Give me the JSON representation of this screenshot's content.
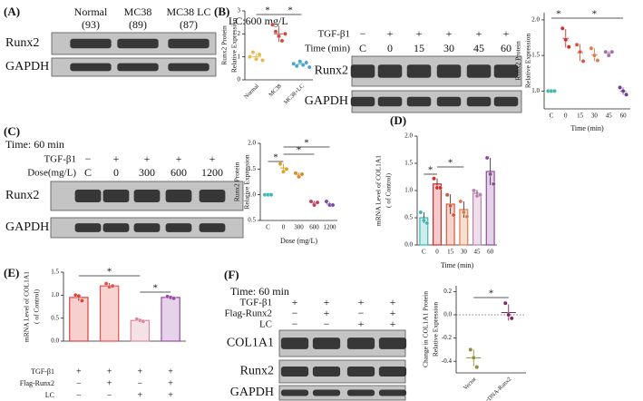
{
  "panels": [
    "(A)",
    "(B)",
    "(C)",
    "(D)",
    "(E)",
    "(F)"
  ],
  "blots": [
    {
      "lanes": [
        [
          "Normal",
          "(93)"
        ],
        [
          "MC38",
          "(89)"
        ],
        [
          "MC38 LC",
          "(87)"
        ]
      ],
      "rows": [
        "Runx2",
        "GAPDH"
      ]
    },
    {
      "notes": [
        "LC:600 mg/L"
      ],
      "conditions": [
        {
          "name": "TGF-β1",
          "marks": [
            "−",
            "+",
            "+",
            "+",
            "+",
            "+"
          ]
        },
        {
          "name": "Time (min)",
          "marks": [
            "C",
            "0",
            "15",
            "30",
            "45",
            "60"
          ]
        }
      ],
      "rows": [
        "Runx2",
        "GAPDH"
      ]
    },
    {
      "notes": [
        "Time: 60 min"
      ],
      "conditions": [
        {
          "name": "TGF-β1",
          "marks": [
            "−",
            "+",
            "+",
            "+",
            "+"
          ]
        },
        {
          "name": "Dose(mg/L)",
          "marks": [
            "C",
            "0",
            "300",
            "600",
            "1200"
          ]
        }
      ],
      "rows": [
        "Runx2",
        "GAPDH"
      ]
    },
    {
      "notes": [
        "Time: 60 min"
      ],
      "conditions": [
        {
          "name": "TGF-β1",
          "marks": [
            "+",
            "+",
            "+",
            "+"
          ]
        },
        {
          "name": "Flag-Runx2",
          "marks": [
            "−",
            "+",
            "−",
            "+"
          ]
        },
        {
          "name": "LC",
          "marks": [
            "−",
            "−",
            "+",
            "+"
          ]
        }
      ],
      "rows": [
        "COL1A1",
        "Runx2",
        "GAPDH"
      ]
    }
  ],
  "chart_data": [
    {
      "type": "dotplot",
      "ylabel": [
        "Runx2 Protein",
        "Relative Expression"
      ],
      "categories": [
        "Normal",
        "MC38",
        "MC38+LC"
      ],
      "colors": [
        "#e8b84a",
        "#d4473e",
        "#4aa3c8"
      ],
      "points": [
        [
          1.0,
          1.2,
          0.9,
          1.1,
          0.85
        ],
        [
          2.4,
          2.1,
          1.9,
          1.7,
          2.0
        ],
        [
          0.7,
          0.6,
          0.8,
          0.65,
          0.75,
          0.55
        ]
      ],
      "means": [
        1.0,
        2.0,
        0.68
      ],
      "errors": [
        0.15,
        0.35,
        0.1
      ],
      "ylim": [
        0,
        3
      ],
      "yticks": [
        0,
        1,
        2,
        3
      ],
      "annotations": [
        "*",
        "*"
      ]
    },
    {
      "type": "dotplot",
      "ylabel": [
        "Runx2 Protein",
        "Relative Expression"
      ],
      "xlabel": "Time (min)",
      "categories": [
        "C",
        "0",
        "15",
        "30",
        "45",
        "60"
      ],
      "colors": [
        "#3bb6b0",
        "#d42a2a",
        "#d8553a",
        "#e07a4a",
        "#a070a8",
        "#6a3c9c"
      ],
      "points": [
        [
          1.0,
          1.0,
          1.0
        ],
        [
          1.88,
          1.72,
          1.62
        ],
        [
          1.65,
          1.55,
          1.42
        ],
        [
          1.6,
          1.5,
          1.43
        ],
        [
          1.55,
          1.5,
          1.55
        ],
        [
          1.05,
          1.0,
          0.95
        ]
      ],
      "means": [
        1.0,
        1.74,
        1.54,
        1.51,
        1.53,
        1.0
      ],
      "errors": [
        0,
        0.13,
        0.12,
        0.09,
        0.03,
        0.05
      ],
      "ylim": [
        0.75,
        2.1
      ],
      "yticks": [
        {
          "value": 1,
          "label": "1.0"
        },
        {
          "value": 1.5,
          "label": "1.5"
        },
        {
          "value": 2,
          "label": "2.0"
        }
      ],
      "annotations": [
        "*",
        "*"
      ]
    },
    {
      "type": "dotplot",
      "ylabel": [
        "Runx2 Protein",
        "Relative Expression"
      ],
      "xlabel": "Dose (mg/L)",
      "categories": [
        "C",
        "0",
        "300",
        "600",
        "1200"
      ],
      "colors": [
        "#3bb6b0",
        "#e0a020",
        "#d88a30",
        "#c0405a",
        "#7a4aa0"
      ],
      "points": [
        [
          1.0,
          1.0,
          1.0
        ],
        [
          1.6,
          1.45,
          1.5
        ],
        [
          1.42,
          1.35,
          1.4
        ],
        [
          0.87,
          0.8,
          0.85
        ],
        [
          0.87,
          0.8,
          0.8
        ]
      ],
      "means": [
        1.0,
        1.52,
        1.39,
        0.84,
        0.82
      ],
      "errors": [
        0,
        0.08,
        0.04,
        0.04,
        0.04
      ],
      "ylim": [
        0.5,
        2.0
      ],
      "yticks": [
        {
          "value": 0.5,
          "label": "0.5"
        },
        {
          "value": 1,
          "label": "1.0"
        },
        {
          "value": 1.5,
          "label": "1.5"
        },
        {
          "value": 2,
          "label": "2.0"
        }
      ],
      "annotations": [
        "*",
        "*",
        "*"
      ]
    },
    {
      "type": "bar",
      "ylabel": [
        "mRNA Level of COL1A1",
        "( of Control)"
      ],
      "xlabel": "Time (min)",
      "categories": [
        "C",
        "0",
        "15",
        "30",
        "45",
        "60"
      ],
      "colors": [
        "#3bb6b0",
        "#d42a2a",
        "#d8553a",
        "#e07a4a",
        "#c080b0",
        "#8e4a9c"
      ],
      "values": [
        0.5,
        1.12,
        0.75,
        0.65,
        0.95,
        1.35
      ],
      "errors": [
        0.1,
        0.1,
        0.18,
        0.15,
        0.06,
        0.25
      ],
      "points": [
        [
          0.6,
          0.45,
          0.4
        ],
        [
          1.22,
          1.05,
          1.05
        ],
        [
          0.92,
          0.72,
          0.55
        ],
        [
          0.8,
          0.6,
          0.52
        ],
        [
          1.0,
          0.9,
          0.92
        ],
        [
          1.6,
          1.3,
          1.12
        ]
      ],
      "ylim": [
        0,
        2
      ],
      "yticks": [
        {
          "value": 0,
          "label": "0.0"
        },
        {
          "value": 0.5,
          "label": "0.5"
        },
        {
          "value": 1,
          "label": "1.0"
        },
        {
          "value": 1.5,
          "label": "1.5"
        },
        {
          "value": 2,
          "label": "2.0"
        }
      ],
      "annotations": [
        "*",
        "*"
      ]
    },
    {
      "type": "bar",
      "ylabel": [
        "mRNA Level of COL1A1",
        "( of Control)"
      ],
      "colors": [
        "#e0403a",
        "#e8504a",
        "#d88aa0",
        "#9a4aa8"
      ],
      "values": [
        0.95,
        1.2,
        0.45,
        0.95
      ],
      "errors": [
        0.07,
        0.06,
        0.04,
        0.04
      ],
      "points": [
        [
          1.0,
          0.98,
          0.88
        ],
        [
          1.25,
          1.18,
          1.2
        ],
        [
          0.48,
          0.45,
          0.43
        ],
        [
          0.97,
          0.95,
          0.93
        ]
      ],
      "conditions": [
        {
          "name": "TGF-β1",
          "marks": [
            "+",
            "+",
            "+",
            "+"
          ]
        },
        {
          "name": "Flag-Runx2",
          "marks": [
            "−",
            "+",
            "−",
            "+"
          ]
        },
        {
          "name": "LC",
          "marks": [
            "−",
            "−",
            "+",
            "+"
          ]
        }
      ],
      "ylim": [
        0,
        1.5
      ],
      "yticks": [
        {
          "value": 0,
          "label": "0.0"
        },
        {
          "value": 0.5,
          "label": "0.5"
        },
        {
          "value": 1,
          "label": "1.0"
        },
        {
          "value": 1.5,
          "label": "1.5"
        }
      ],
      "annotations": [
        "*",
        "*"
      ]
    },
    {
      "type": "dotplot",
      "ylabel": [
        "Change in COL1A1 Protein",
        "Relative Expression"
      ],
      "categories": [
        "Vector",
        "cDNA-Runx2"
      ],
      "colors": [
        "#8a8a3a",
        "#7a2a5a"
      ],
      "points": [
        [
          -0.3,
          -0.37,
          -0.45
        ],
        [
          0.1,
          0.0,
          -0.03
        ]
      ],
      "means": [
        -0.37,
        0.02
      ],
      "errors": [
        0.07,
        0.07
      ],
      "reference_line": 0,
      "ylim": [
        -0.5,
        0.25
      ],
      "yticks": [
        {
          "value": 0.2,
          "label": "0.2"
        },
        {
          "value": 0,
          "label": "0.0"
        },
        {
          "value": -0.2,
          "label": "-0.2"
        },
        {
          "value": -0.4,
          "label": "-0.4"
        }
      ],
      "annotations": [
        "*"
      ]
    }
  ]
}
